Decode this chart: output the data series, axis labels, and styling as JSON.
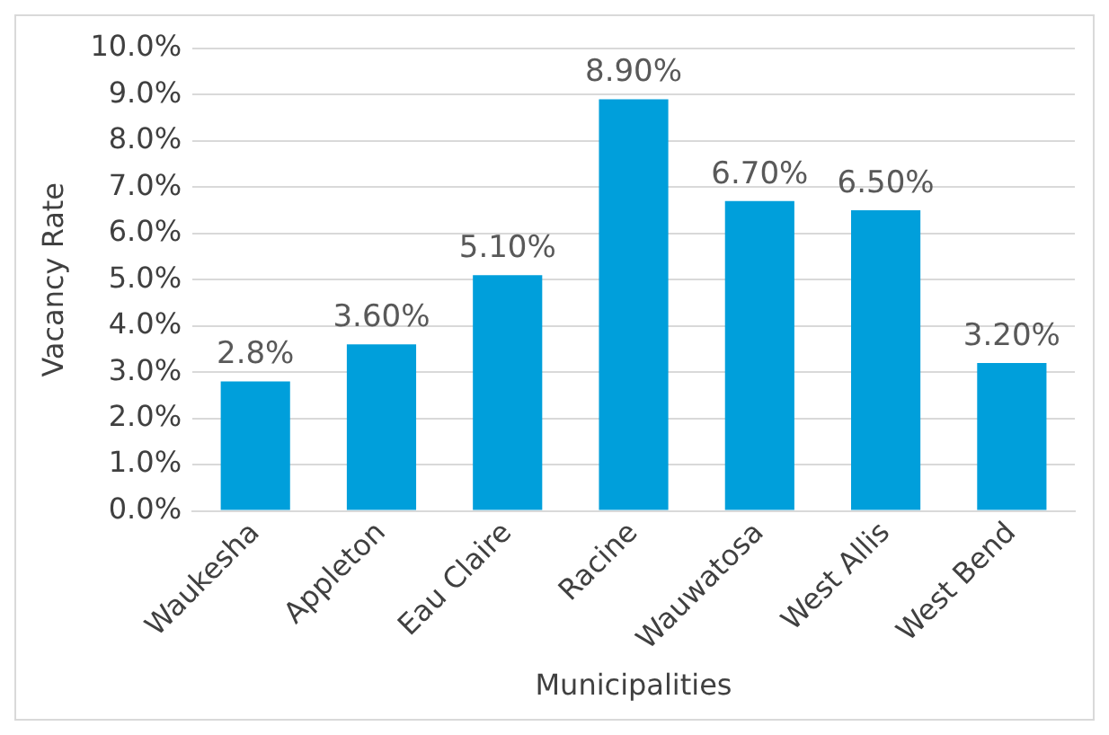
{
  "chart_data": {
    "type": "bar",
    "xlabel": "Municipalities",
    "ylabel": "Vacancy Rate",
    "categories": [
      "Waukesha",
      "Appleton",
      "Eau Claire",
      "Racine",
      "Wauwatosa",
      "West Allis",
      "West Bend"
    ],
    "values": [
      2.8,
      3.6,
      5.1,
      8.9,
      6.7,
      6.5,
      3.2
    ],
    "value_labels": [
      "2.8%",
      "3.60%",
      "5.10%",
      "8.90%",
      "6.70%",
      "6.50%",
      "3.20%"
    ],
    "color": "#009fdb",
    "ylim": [
      0,
      10
    ],
    "yticks": [
      {
        "value": 0,
        "label": "0.0%"
      },
      {
        "value": 1,
        "label": "1.0%"
      },
      {
        "value": 2,
        "label": "2.0%"
      },
      {
        "value": 3,
        "label": "3.0%"
      },
      {
        "value": 4,
        "label": "4.0%"
      },
      {
        "value": 5,
        "label": "5.0%"
      },
      {
        "value": 6,
        "label": "6.0%"
      },
      {
        "value": 7,
        "label": "7.0%"
      },
      {
        "value": 8,
        "label": "8.0%"
      },
      {
        "value": 9,
        "label": "9.0%"
      },
      {
        "value": 10,
        "label": "10.0%"
      }
    ],
    "grid": "y",
    "legend": false
  }
}
